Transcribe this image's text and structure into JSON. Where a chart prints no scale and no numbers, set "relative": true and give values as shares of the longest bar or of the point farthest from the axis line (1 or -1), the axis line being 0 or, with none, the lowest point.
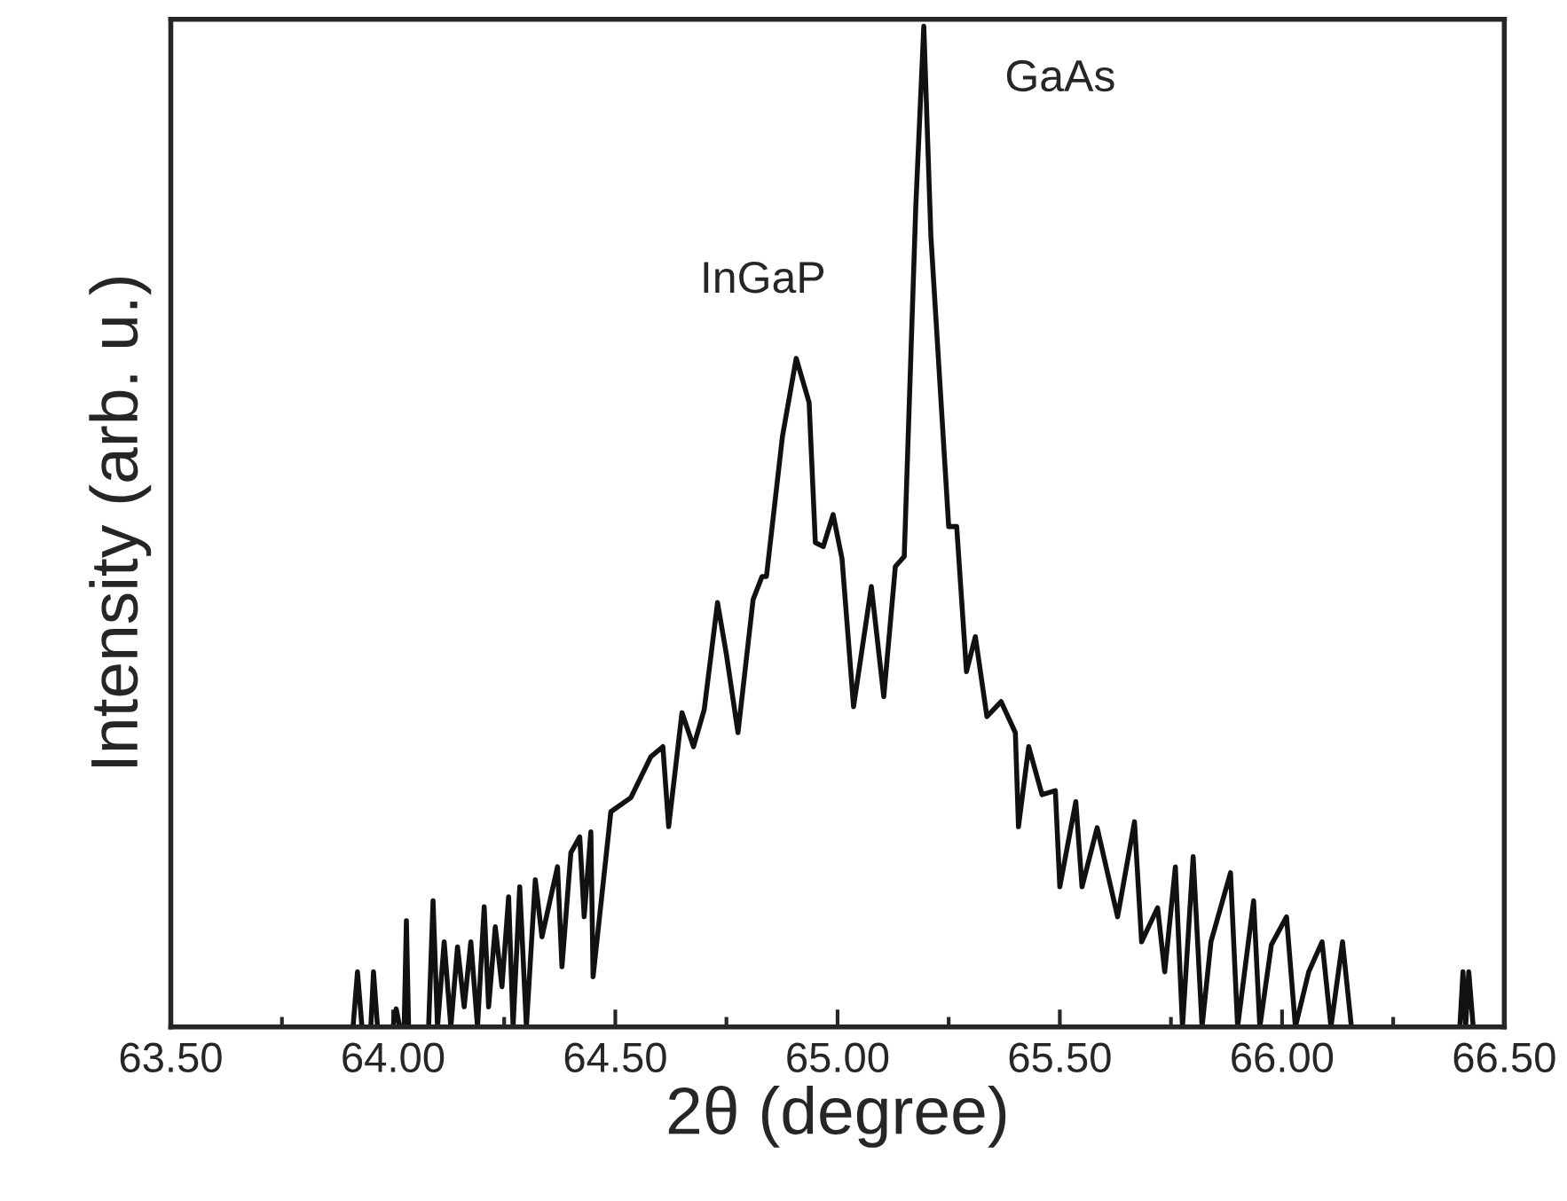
{
  "chart_data": {
    "type": "line",
    "xlabel": "2θ (degree)",
    "ylabel": "Intensity (arb. u.)",
    "relative": true,
    "xlim": [
      63.5,
      66.5
    ],
    "xticks": [
      {
        "value": 63.5,
        "label": "63.50"
      },
      {
        "value": 63.75,
        "label": null
      },
      {
        "value": 64.0,
        "label": "64.00"
      },
      {
        "value": 64.25,
        "label": null
      },
      {
        "value": 64.5,
        "label": "64.50"
      },
      {
        "value": 64.75,
        "label": null
      },
      {
        "value": 65.0,
        "label": "65.00"
      },
      {
        "value": 65.25,
        "label": null
      },
      {
        "value": 65.5,
        "label": "65.50"
      },
      {
        "value": 65.75,
        "label": null
      },
      {
        "value": 66.0,
        "label": "66.00"
      },
      {
        "value": 66.25,
        "label": null
      },
      {
        "value": 66.5,
        "label": "66.50"
      }
    ],
    "grid": false,
    "legend": false,
    "marker": "none",
    "line_style": "solid",
    "series": [
      {
        "color": "#111111",
        "x": [
          63.91,
          63.92,
          63.93,
          63.95,
          63.956,
          63.965,
          64.0,
          64.007,
          64.015,
          64.025,
          64.03,
          64.035,
          64.08,
          64.09,
          64.1,
          64.115,
          64.13,
          64.145,
          64.16,
          64.175,
          64.19,
          64.205,
          64.215,
          64.23,
          64.245,
          64.26,
          64.27,
          64.285,
          64.3,
          64.32,
          64.335,
          64.35,
          64.37,
          64.38,
          64.4,
          64.42,
          64.43,
          64.445,
          64.45,
          64.49,
          64.535,
          64.58,
          64.607,
          64.62,
          64.65,
          64.676,
          64.7,
          64.73,
          64.75,
          64.776,
          64.81,
          64.83,
          64.84,
          64.876,
          64.907,
          64.936,
          64.95,
          64.968,
          64.99,
          65.01,
          65.036,
          65.076,
          65.104,
          65.13,
          65.15,
          65.176,
          65.194,
          65.21,
          65.25,
          65.268,
          65.29,
          65.31,
          65.336,
          65.368,
          65.4,
          65.407,
          65.43,
          65.46,
          65.49,
          65.5,
          65.536,
          65.55,
          65.584,
          65.63,
          65.668,
          65.684,
          65.72,
          65.736,
          65.76,
          65.776,
          65.8,
          65.82,
          65.84,
          65.884,
          65.9,
          65.936,
          65.95,
          65.976,
          66.01,
          66.03,
          66.06,
          66.09,
          66.11,
          66.136,
          66.156,
          66.4,
          66.407,
          66.413,
          66.42,
          66.43
        ],
        "values": [
          0,
          0.055,
          0,
          0,
          0.055,
          0,
          0,
          0.018,
          0,
          0,
          0.106,
          0,
          0,
          0.126,
          0,
          0.085,
          0,
          0.08,
          0.02,
          0.085,
          0,
          0.12,
          0.02,
          0.1,
          0.04,
          0.13,
          0,
          0.14,
          0,
          0.147,
          0.09,
          0.12,
          0.16,
          0.06,
          0.174,
          0.19,
          0.11,
          0.195,
          0.05,
          0.215,
          0.229,
          0.27,
          0.28,
          0.2,
          0.314,
          0.28,
          0.317,
          0.424,
          0.372,
          0.294,
          0.427,
          0.45,
          0.45,
          0.59,
          0.668,
          0.624,
          0.484,
          0.48,
          0.512,
          0.468,
          0.32,
          0.44,
          0.33,
          0.46,
          0.47,
          0.82,
          1.0,
          0.79,
          0.5,
          0.5,
          0.355,
          0.39,
          0.31,
          0.325,
          0.294,
          0.2,
          0.28,
          0.232,
          0.236,
          0.14,
          0.225,
          0.14,
          0.199,
          0.11,
          0.205,
          0.085,
          0.119,
          0.055,
          0.16,
          0,
          0.17,
          0,
          0.085,
          0.154,
          0,
          0.126,
          0,
          0.082,
          0.11,
          0,
          0.055,
          0.085,
          0,
          0.085,
          0,
          0,
          0.055,
          0,
          0.055,
          0
        ]
      }
    ],
    "annotations": [
      "InGaP",
      "GaAs"
    ]
  }
}
